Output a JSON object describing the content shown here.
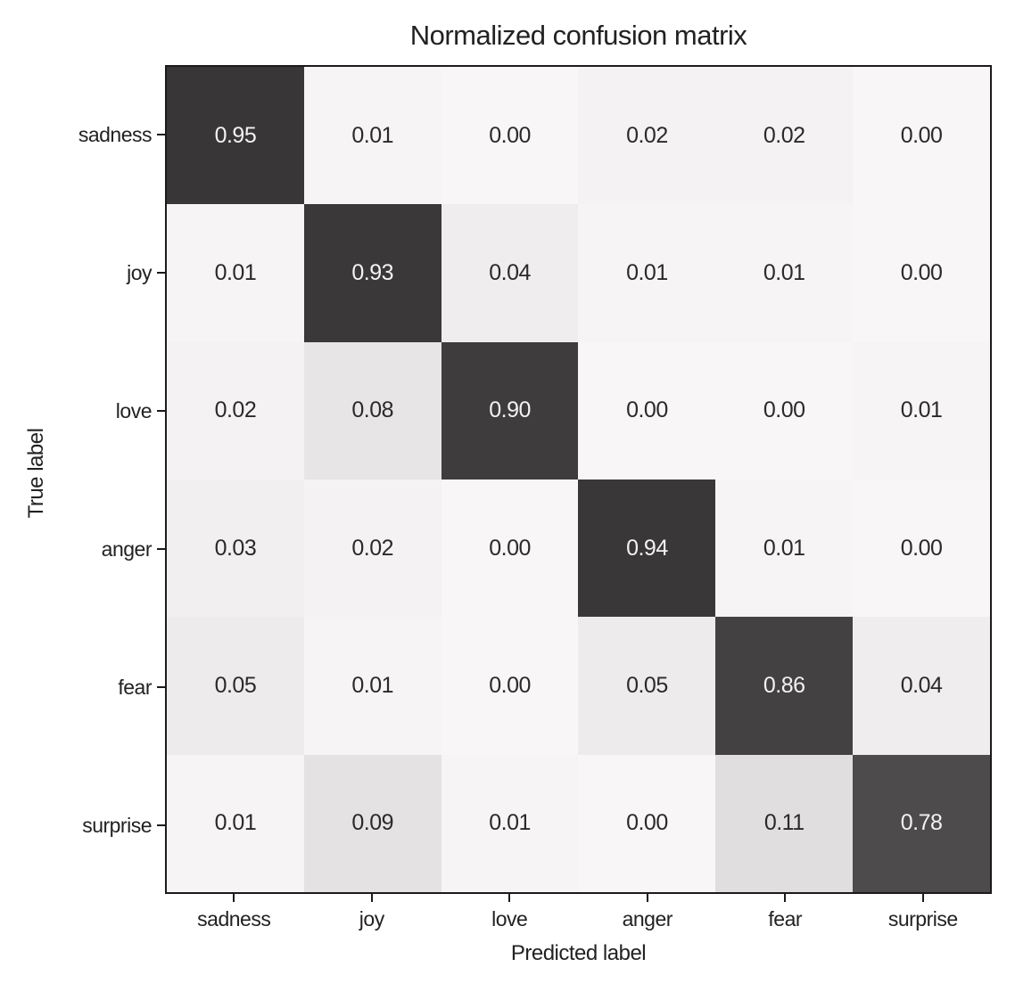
{
  "chart_data": {
    "type": "heatmap",
    "title": "Normalized confusion matrix",
    "xlabel": "Predicted label",
    "ylabel": "True label",
    "categories": [
      "sadness",
      "joy",
      "love",
      "anger",
      "fear",
      "surprise"
    ],
    "matrix": [
      [
        0.95,
        0.01,
        0.0,
        0.02,
        0.02,
        0.0
      ],
      [
        0.01,
        0.93,
        0.04,
        0.01,
        0.01,
        0.0
      ],
      [
        0.02,
        0.08,
        0.9,
        0.0,
        0.0,
        0.01
      ],
      [
        0.03,
        0.02,
        0.0,
        0.94,
        0.01,
        0.0
      ],
      [
        0.05,
        0.01,
        0.0,
        0.05,
        0.86,
        0.04
      ],
      [
        0.01,
        0.09,
        0.01,
        0.0,
        0.11,
        0.78
      ]
    ],
    "value_decimals": 2,
    "vmin": 0,
    "vmax": 1,
    "colormap": "greys",
    "legend": "none",
    "grid": "off"
  },
  "colors": {
    "background": "#ffffff",
    "frame": "#1c1a1a",
    "label_text": "#232121",
    "cell_text_dark": "#2b2929",
    "cell_text_light": "#f3f2f2",
    "colormap_anchors": [
      [
        0,
        246
      ],
      [
        0.11,
        222
      ],
      [
        0.5,
        140
      ],
      [
        0.78,
        75
      ],
      [
        0.95,
        54
      ],
      [
        1,
        40
      ]
    ],
    "text_color_threshold": 0.5
  }
}
